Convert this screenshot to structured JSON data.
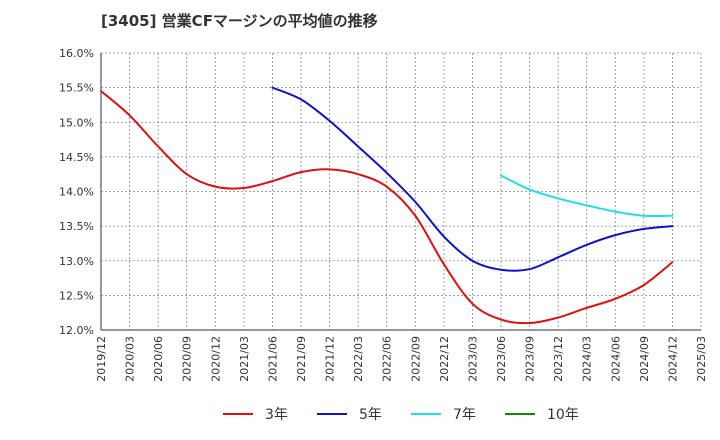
{
  "chart_data": {
    "type": "line",
    "title": "[3405]  営業CFマージンの平均値の推移",
    "xlabel": "",
    "ylabel": "",
    "ylim": [
      12.0,
      16.0
    ],
    "yticks": [
      "16.0%",
      "15.5%",
      "15.0%",
      "14.5%",
      "14.0%",
      "13.5%",
      "13.0%",
      "12.5%",
      "12.0%"
    ],
    "ytick_values": [
      16.0,
      15.5,
      15.0,
      14.5,
      14.0,
      13.5,
      13.0,
      12.5,
      12.0
    ],
    "xticks": [
      "2019/12",
      "2020/03",
      "2020/06",
      "2020/09",
      "2020/12",
      "2021/03",
      "2021/06",
      "2021/09",
      "2021/12",
      "2022/03",
      "2022/06",
      "2022/09",
      "2022/12",
      "2023/03",
      "2023/06",
      "2023/09",
      "2023/12",
      "2024/03",
      "2024/06",
      "2024/09",
      "2024/12",
      "2025/03"
    ],
    "grid": true,
    "legend_position": "bottom",
    "series": [
      {
        "name": "3年",
        "color": "#dd1111",
        "points": [
          [
            "2019/12",
            15.45
          ],
          [
            "2020/03",
            15.1
          ],
          [
            "2020/06",
            14.65
          ],
          [
            "2020/09",
            14.25
          ],
          [
            "2020/12",
            14.07
          ],
          [
            "2021/03",
            14.05
          ],
          [
            "2021/06",
            14.15
          ],
          [
            "2021/09",
            14.28
          ],
          [
            "2021/12",
            14.32
          ],
          [
            "2022/03",
            14.25
          ],
          [
            "2022/06",
            14.07
          ],
          [
            "2022/09",
            13.65
          ],
          [
            "2022/12",
            12.95
          ],
          [
            "2023/03",
            12.38
          ],
          [
            "2023/06",
            12.15
          ],
          [
            "2023/09",
            12.1
          ],
          [
            "2023/12",
            12.18
          ],
          [
            "2024/03",
            12.32
          ],
          [
            "2024/06",
            12.45
          ],
          [
            "2024/09",
            12.65
          ],
          [
            "2024/12",
            12.98
          ]
        ]
      },
      {
        "name": "5年",
        "color": "#1111cc",
        "points": [
          [
            "2021/06",
            15.5
          ],
          [
            "2021/09",
            15.33
          ],
          [
            "2021/12",
            15.02
          ],
          [
            "2022/03",
            14.65
          ],
          [
            "2022/06",
            14.27
          ],
          [
            "2022/09",
            13.85
          ],
          [
            "2022/12",
            13.35
          ],
          [
            "2023/03",
            13.0
          ],
          [
            "2023/06",
            12.87
          ],
          [
            "2023/09",
            12.88
          ],
          [
            "2023/12",
            13.05
          ],
          [
            "2024/03",
            13.23
          ],
          [
            "2024/06",
            13.37
          ],
          [
            "2024/09",
            13.46
          ],
          [
            "2024/12",
            13.5
          ]
        ]
      },
      {
        "name": "7年",
        "color": "#22ddee",
        "points": [
          [
            "2023/06",
            14.23
          ],
          [
            "2023/09",
            14.03
          ],
          [
            "2023/12",
            13.9
          ],
          [
            "2024/03",
            13.8
          ],
          [
            "2024/06",
            13.71
          ],
          [
            "2024/09",
            13.65
          ],
          [
            "2024/12",
            13.65
          ]
        ]
      },
      {
        "name": "10年",
        "color": "#118811",
        "points": []
      }
    ]
  }
}
